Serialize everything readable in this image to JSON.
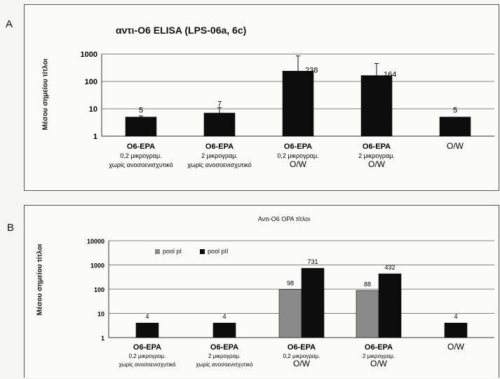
{
  "panel_a_letter": "A",
  "panel_b_letter": "B",
  "chart_data": [
    {
      "type": "bar",
      "title": "αντι-O6 ELISA (LPS-06a, 6c)",
      "ylabel": "Μέσου σημείου τίτλοι",
      "yscale": "log",
      "ylim": [
        1,
        1000
      ],
      "yticks": [
        "1",
        "10",
        "100",
        "1000"
      ],
      "grid": true,
      "categories": [
        [
          "O6-EPA",
          "0,2 μικρογραμ.",
          "χωρίς ανοσοενισχυτικό"
        ],
        [
          "O6-EPA",
          "2 μικρογραμ.",
          "χωρίς ανοσοενισχυτικό"
        ],
        [
          "O6-EPA",
          "0,2 μικρογραμ.",
          "O/W"
        ],
        [
          "O6-EPA",
          "2 μικρογραμ.",
          "O/W"
        ],
        [
          "O/W"
        ]
      ],
      "values": [
        5,
        7,
        238,
        164,
        5
      ],
      "value_labels": [
        "5",
        "7",
        "238",
        "164",
        "5"
      ],
      "error_upper": [
        5.5,
        11,
        850,
        450,
        null
      ],
      "bar_color": "#0d0d0d"
    },
    {
      "type": "bar",
      "title": "Αντι-O6 OPA τίτλοι",
      "ylabel": "Μέσου σημείου τίτλοι",
      "yscale": "log",
      "ylim": [
        1,
        10000
      ],
      "yticks": [
        "1",
        "10",
        "100",
        "1000",
        "10000"
      ],
      "grid": true,
      "legend_position": "top-left",
      "series": [
        {
          "name": "pool pI",
          "color": "#8a8a8a",
          "values": [
            null,
            null,
            98,
            88,
            null
          ],
          "value_labels": [
            "",
            "",
            "98",
            "88",
            ""
          ]
        },
        {
          "name": "pool pII",
          "color": "#0d0d0d",
          "values": [
            4,
            4,
            731,
            432,
            4
          ],
          "value_labels": [
            "4",
            "4",
            "731",
            "432",
            "4"
          ]
        }
      ],
      "categories": [
        [
          "O6-EPA",
          "0,2 μικρογραμ.",
          "χωρίς ανοσοενισχυτικό"
        ],
        [
          "O6-EPA",
          "2 μικρογραμ.",
          "χωρίς ανοσοενισχυτικό"
        ],
        [
          "O6-EPA",
          "0,2 μικρογραμ.",
          "O/W"
        ],
        [
          "O6-EPA",
          "2 μικρογραμ.",
          "O/W"
        ],
        [
          "O/W"
        ]
      ]
    }
  ]
}
